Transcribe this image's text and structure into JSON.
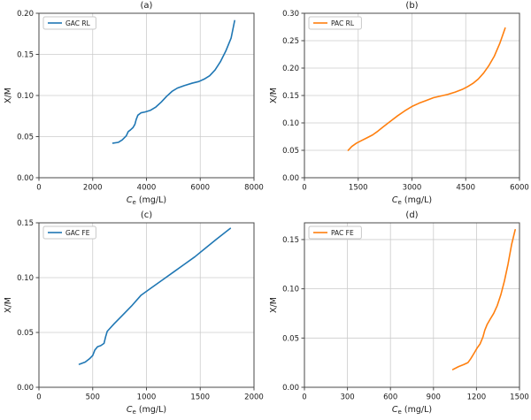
{
  "figure": {
    "background": "#ffffff",
    "rows": 2,
    "cols": 2
  },
  "style": {
    "grid_color": "#cccccc",
    "spine_color": "#4a4a4a",
    "tick_color": "#4a4a4a",
    "text_color": "#1a1a1a",
    "legend_border_color": "#c8c8c8",
    "legend_background": "#ffffff",
    "series_line_width": 1.6,
    "blue": "#1f77b4",
    "orange": "#ff7f0e"
  },
  "chart_data": [
    {
      "id": "a",
      "type": "line",
      "title": "(a)",
      "legend_label": "GAC RL",
      "legend_position": "upper left",
      "color": "#1f77b4",
      "xlabel": {
        "symbol": "C",
        "subscript": "e",
        "unit": "(mg/L)"
      },
      "ylabel": "X/M",
      "xlim": [
        0,
        8000
      ],
      "ylim": [
        0,
        0.2
      ],
      "grid": true,
      "xticks": [
        0,
        2000,
        4000,
        6000,
        8000
      ],
      "xtick_labels": [
        "0",
        "2000",
        "4000",
        "6000",
        "8000"
      ],
      "yticks": [
        0.0,
        0.05,
        0.1,
        0.15,
        0.2
      ],
      "ytick_labels": [
        "0.00",
        "0.05",
        "0.10",
        "0.15",
        "0.20"
      ],
      "x": [
        2750,
        2950,
        3100,
        3250,
        3320,
        3400,
        3500,
        3570,
        3620,
        3680,
        3800,
        3950,
        4150,
        4350,
        4550,
        4750,
        4950,
        5150,
        5400,
        5700,
        5950,
        6150,
        6350,
        6550,
        6750,
        6950,
        7150,
        7280
      ],
      "y": [
        0.042,
        0.043,
        0.046,
        0.051,
        0.056,
        0.058,
        0.061,
        0.065,
        0.071,
        0.076,
        0.079,
        0.08,
        0.082,
        0.086,
        0.092,
        0.099,
        0.105,
        0.109,
        0.112,
        0.115,
        0.117,
        0.12,
        0.124,
        0.131,
        0.141,
        0.154,
        0.17,
        0.191
      ]
    },
    {
      "id": "b",
      "type": "line",
      "title": "(b)",
      "legend_label": "PAC RL",
      "legend_position": "upper left",
      "color": "#ff7f0e",
      "xlabel": {
        "symbol": "C",
        "subscript": "e",
        "unit": "(mg/L)"
      },
      "ylabel": "X/M",
      "xlim": [
        0,
        6000
      ],
      "ylim": [
        0,
        0.3
      ],
      "grid": true,
      "xticks": [
        0,
        1500,
        3000,
        4500,
        6000
      ],
      "xtick_labels": [
        "0",
        "1500",
        "3000",
        "4500",
        "6000"
      ],
      "yticks": [
        0.0,
        0.05,
        0.1,
        0.15,
        0.2,
        0.25,
        0.3
      ],
      "ytick_labels": [
        "0.00",
        "0.05",
        "0.10",
        "0.15",
        "0.20",
        "0.25",
        "0.30"
      ],
      "x": [
        1220,
        1320,
        1450,
        1600,
        1750,
        1900,
        2050,
        2200,
        2400,
        2600,
        2800,
        3000,
        3200,
        3400,
        3600,
        3800,
        4000,
        4200,
        4400,
        4550,
        4700,
        4850,
        5000,
        5150,
        5300,
        5450,
        5600
      ],
      "y": [
        0.05,
        0.057,
        0.063,
        0.068,
        0.073,
        0.078,
        0.085,
        0.093,
        0.103,
        0.113,
        0.122,
        0.13,
        0.136,
        0.141,
        0.146,
        0.149,
        0.152,
        0.156,
        0.161,
        0.166,
        0.172,
        0.18,
        0.191,
        0.205,
        0.222,
        0.245,
        0.273
      ]
    },
    {
      "id": "c",
      "type": "line",
      "title": "(c)",
      "legend_label": "GAC FE",
      "legend_position": "upper left",
      "color": "#1f77b4",
      "xlabel": {
        "symbol": "C",
        "subscript": "e",
        "unit": "(mg/L)"
      },
      "ylabel": "X/M",
      "xlim": [
        0,
        2000
      ],
      "ylim": [
        0,
        0.15
      ],
      "grid": true,
      "xticks": [
        0,
        500,
        1000,
        1500,
        2000
      ],
      "xtick_labels": [
        "0",
        "500",
        "1000",
        "1500",
        "2000"
      ],
      "yticks": [
        0.0,
        0.05,
        0.1,
        0.15
      ],
      "ytick_labels": [
        "0.00",
        "0.05",
        "0.10",
        "0.15"
      ],
      "x": [
        375,
        430,
        470,
        500,
        520,
        545,
        575,
        605,
        620,
        635,
        700,
        780,
        860,
        950,
        1050,
        1150,
        1250,
        1350,
        1450,
        1550,
        1650,
        1780
      ],
      "y": [
        0.021,
        0.023,
        0.026,
        0.029,
        0.034,
        0.037,
        0.038,
        0.04,
        0.046,
        0.051,
        0.058,
        0.066,
        0.074,
        0.084,
        0.091,
        0.098,
        0.105,
        0.112,
        0.119,
        0.127,
        0.135,
        0.145
      ]
    },
    {
      "id": "d",
      "type": "line",
      "title": "(d)",
      "legend_label": "PAC FE",
      "legend_position": "upper left",
      "color": "#ff7f0e",
      "xlabel": {
        "symbol": "C",
        "subscript": "e",
        "unit": "(mg/L)"
      },
      "ylabel": "X/M",
      "xlim": [
        0,
        1500
      ],
      "ylim": [
        0,
        0.167
      ],
      "grid": true,
      "xticks": [
        0,
        300,
        600,
        900,
        1200,
        1500
      ],
      "xtick_labels": [
        "0",
        "300",
        "600",
        "900",
        "1200",
        "1500"
      ],
      "yticks": [
        0.0,
        0.05,
        0.1,
        0.15
      ],
      "ytick_labels": [
        "0.00",
        "0.05",
        "0.10",
        "0.15"
      ],
      "x": [
        1035,
        1075,
        1110,
        1140,
        1160,
        1185,
        1205,
        1225,
        1245,
        1258,
        1275,
        1295,
        1320,
        1345,
        1370,
        1395,
        1420,
        1445,
        1470
      ],
      "y": [
        0.018,
        0.021,
        0.023,
        0.025,
        0.029,
        0.035,
        0.04,
        0.044,
        0.051,
        0.058,
        0.064,
        0.069,
        0.075,
        0.083,
        0.094,
        0.108,
        0.125,
        0.145,
        0.16
      ]
    }
  ]
}
